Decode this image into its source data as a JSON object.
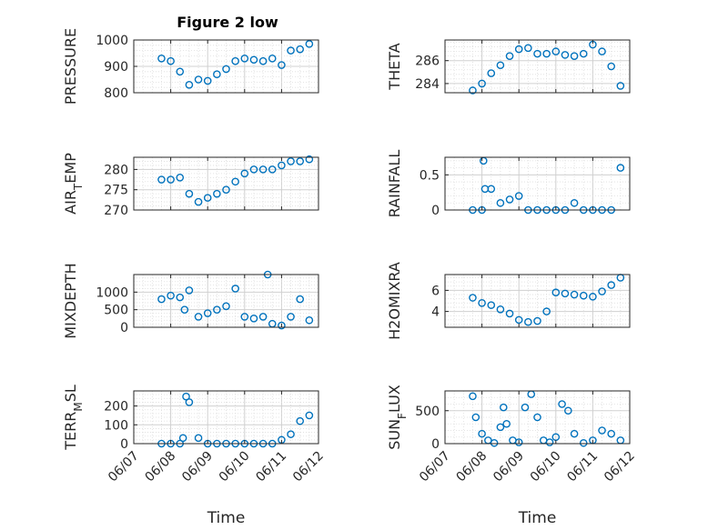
{
  "figure": {
    "title": "Figure 2 low",
    "marker_color": "#0072BD"
  },
  "chart_data": [
    {
      "type": "scatter",
      "ylabel": "PRESSURE",
      "ylim": [
        800,
        1000
      ],
      "yticks": [
        "800",
        "900",
        "1000"
      ],
      "x": [
        "06/07 18:00",
        "06/08 00:00",
        "06/08 06:00",
        "06/08 12:00",
        "06/08 18:00",
        "06/09 00:00",
        "06/09 06:00",
        "06/09 12:00",
        "06/09 18:00",
        "06/10 00:00",
        "06/10 06:00",
        "06/10 12:00",
        "06/10 18:00",
        "06/11 00:00",
        "06/11 06:00",
        "06/11 12:00",
        "06/11 18:00"
      ],
      "y": [
        930,
        920,
        880,
        830,
        850,
        845,
        870,
        890,
        920,
        930,
        925,
        920,
        930,
        905,
        960,
        965,
        985
      ]
    },
    {
      "type": "scatter",
      "ylabel": "THETA",
      "ylim": [
        283.2,
        287.8
      ],
      "yticks": [
        "284",
        "286"
      ],
      "x": [
        "06/07 18:00",
        "06/08 00:00",
        "06/08 06:00",
        "06/08 12:00",
        "06/08 18:00",
        "06/09 00:00",
        "06/09 06:00",
        "06/09 12:00",
        "06/09 18:00",
        "06/10 00:00",
        "06/10 06:00",
        "06/10 12:00",
        "06/10 18:00",
        "06/11 00:00",
        "06/11 06:00",
        "06/11 12:00",
        "06/11 18:00"
      ],
      "y": [
        283.4,
        284.0,
        284.9,
        285.6,
        286.4,
        287.0,
        287.1,
        286.6,
        286.6,
        286.8,
        286.5,
        286.4,
        286.6,
        287.4,
        286.8,
        285.5,
        283.8
      ]
    },
    {
      "type": "scatter",
      "ylabel": "AIR_TEMP",
      "ylim": [
        270,
        283
      ],
      "yticks": [
        "270",
        "275",
        "280"
      ],
      "x": [
        "06/07 18:00",
        "06/08 00:00",
        "06/08 06:00",
        "06/08 12:00",
        "06/08 18:00",
        "06/09 00:00",
        "06/09 06:00",
        "06/09 12:00",
        "06/09 18:00",
        "06/10 00:00",
        "06/10 06:00",
        "06/10 12:00",
        "06/10 18:00",
        "06/11 00:00",
        "06/11 06:00",
        "06/11 12:00",
        "06/11 18:00"
      ],
      "y": [
        277.5,
        277.5,
        278,
        274,
        272,
        273,
        274,
        275,
        277,
        279,
        280,
        280,
        280,
        281,
        282,
        282,
        282.5
      ]
    },
    {
      "type": "scatter",
      "ylabel": "RAINFALL",
      "ylim": [
        0,
        0.75
      ],
      "yticks": [
        "0",
        "0.5"
      ],
      "x": [
        "06/07 18:00",
        "06/08 00:00",
        "06/08 01:00",
        "06/08 02:00",
        "06/08 06:00",
        "06/08 12:00",
        "06/08 18:00",
        "06/09 00:00",
        "06/09 06:00",
        "06/09 12:00",
        "06/09 18:00",
        "06/10 00:00",
        "06/10 06:00",
        "06/10 12:00",
        "06/10 18:00",
        "06/11 00:00",
        "06/11 06:00",
        "06/11 12:00",
        "06/11 18:00"
      ],
      "y": [
        0,
        0,
        0.7,
        0.3,
        0.3,
        0.1,
        0.15,
        0.2,
        0,
        0,
        0,
        0,
        0,
        0.1,
        0,
        0,
        0,
        0,
        0.6
      ]
    },
    {
      "type": "scatter",
      "ylabel": "MIXDEPTH",
      "ylim": [
        0,
        1500
      ],
      "yticks": [
        "0",
        "500",
        "1000"
      ],
      "x": [
        "06/07 18:00",
        "06/08 00:00",
        "06/08 06:00",
        "06/08 09:00",
        "06/08 12:00",
        "06/08 18:00",
        "06/09 00:00",
        "06/09 06:00",
        "06/09 12:00",
        "06/09 18:00",
        "06/10 00:00",
        "06/10 06:00",
        "06/10 12:00",
        "06/10 15:00",
        "06/10 18:00",
        "06/11 00:00",
        "06/11 06:00",
        "06/11 12:00",
        "06/11 18:00"
      ],
      "y": [
        800,
        900,
        850,
        500,
        1050,
        300,
        400,
        500,
        600,
        1100,
        300,
        250,
        300,
        1500,
        100,
        50,
        300,
        800,
        200
      ]
    },
    {
      "type": "scatter",
      "ylabel": "H2OMIXRA",
      "ylim": [
        2.5,
        7.5
      ],
      "yticks": [
        "4",
        "6"
      ],
      "x": [
        "06/07 18:00",
        "06/08 00:00",
        "06/08 06:00",
        "06/08 12:00",
        "06/08 18:00",
        "06/09 00:00",
        "06/09 06:00",
        "06/09 12:00",
        "06/09 18:00",
        "06/10 00:00",
        "06/10 06:00",
        "06/10 12:00",
        "06/10 18:00",
        "06/11 00:00",
        "06/11 06:00",
        "06/11 12:00",
        "06/11 18:00"
      ],
      "y": [
        5.3,
        4.8,
        4.6,
        4.2,
        3.8,
        3.2,
        3.0,
        3.1,
        4.0,
        5.8,
        5.7,
        5.6,
        5.5,
        5.4,
        5.9,
        6.5,
        7.2
      ]
    },
    {
      "type": "scatter",
      "ylabel": "TERR_MSL",
      "ylim": [
        0,
        280
      ],
      "yticks": [
        "0",
        "100",
        "200"
      ],
      "x": [
        "06/07 18:00",
        "06/08 00:00",
        "06/08 06:00",
        "06/08 08:00",
        "06/08 10:00",
        "06/08 12:00",
        "06/08 18:00",
        "06/09 00:00",
        "06/09 06:00",
        "06/09 12:00",
        "06/09 18:00",
        "06/10 00:00",
        "06/10 06:00",
        "06/10 12:00",
        "06/10 18:00",
        "06/11 00:00",
        "06/11 06:00",
        "06/11 12:00",
        "06/11 18:00"
      ],
      "y": [
        0,
        0,
        0,
        30,
        250,
        220,
        30,
        0,
        0,
        0,
        0,
        0,
        0,
        0,
        0,
        20,
        50,
        120,
        150
      ]
    },
    {
      "type": "scatter",
      "ylabel": "SUN_FLUX",
      "ylim": [
        0,
        800
      ],
      "yticks": [
        "0",
        "500"
      ],
      "x": [
        "06/07 18:00",
        "06/07 20:00",
        "06/08 00:00",
        "06/08 04:00",
        "06/08 08:00",
        "06/08 12:00",
        "06/08 14:00",
        "06/08 16:00",
        "06/08 20:00",
        "06/09 00:00",
        "06/09 04:00",
        "06/09 08:00",
        "06/09 12:00",
        "06/09 16:00",
        "06/09 20:00",
        "06/10 00:00",
        "06/10 04:00",
        "06/10 08:00",
        "06/10 12:00",
        "06/10 18:00",
        "06/11 00:00",
        "06/11 06:00",
        "06/11 12:00",
        "06/11 18:00"
      ],
      "y": [
        720,
        400,
        150,
        50,
        10,
        250,
        550,
        300,
        50,
        20,
        550,
        750,
        400,
        50,
        20,
        100,
        600,
        500,
        150,
        10,
        50,
        200,
        150,
        50
      ]
    }
  ],
  "x_axis": {
    "ticks": [
      "06/07",
      "06/08",
      "06/09",
      "06/10",
      "06/11",
      "06/12"
    ],
    "label": "Time"
  }
}
